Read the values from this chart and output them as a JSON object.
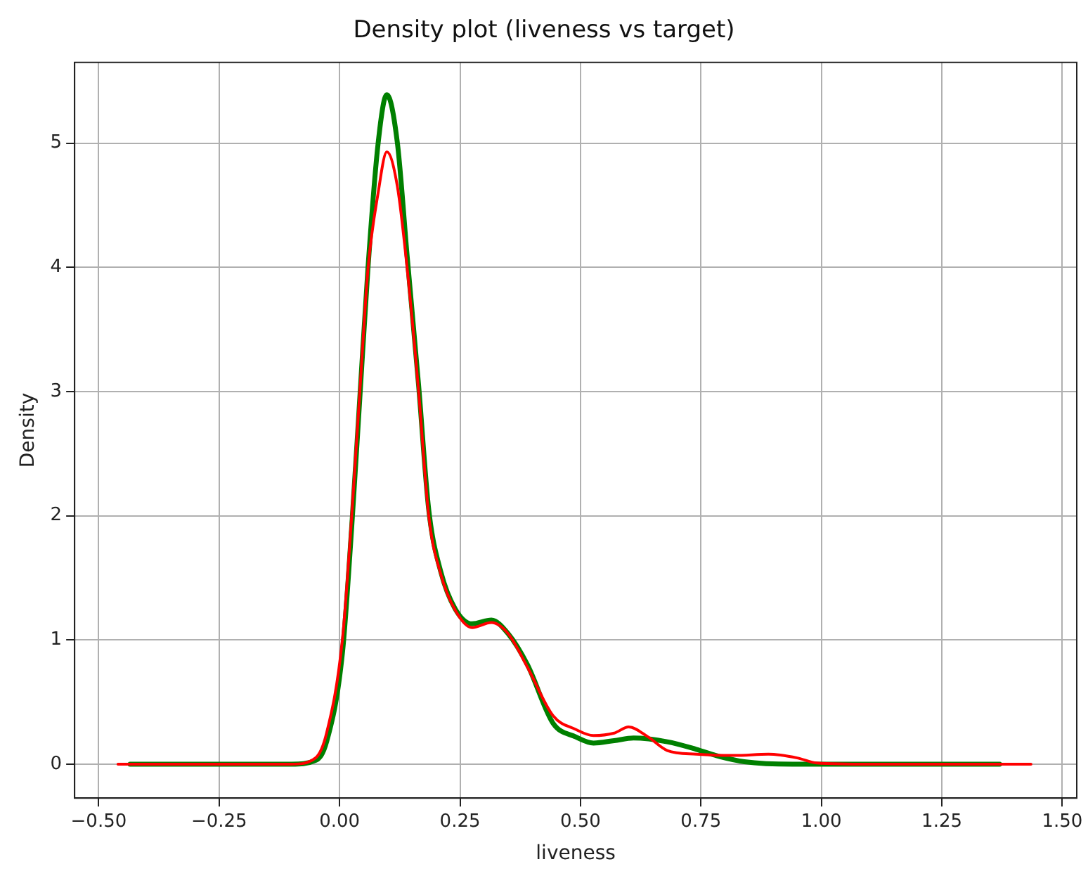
{
  "chart_data": {
    "type": "line",
    "title": "Density plot (liveness vs target)",
    "xlabel": "liveness",
    "ylabel": "Density",
    "xlim": [
      -0.55,
      1.53
    ],
    "ylim": [
      -0.273,
      5.65
    ],
    "xticks": [
      {
        "value": -0.5,
        "label": "−0.50"
      },
      {
        "value": -0.25,
        "label": "−0.25"
      },
      {
        "value": 0,
        "label": "0.00"
      },
      {
        "value": 0.25,
        "label": "0.25"
      },
      {
        "value": 0.5,
        "label": "0.50"
      },
      {
        "value": 0.75,
        "label": "0.75"
      },
      {
        "value": 1,
        "label": "1.00"
      },
      {
        "value": 1.25,
        "label": "1.25"
      },
      {
        "value": 1.5,
        "label": "1.50"
      }
    ],
    "yticks": [
      0,
      1,
      2,
      3,
      4,
      5
    ],
    "grid": true,
    "legend": false,
    "marker": "none",
    "line_style": "solid",
    "series": [
      {
        "color": "#008000",
        "x": [
          -0.435,
          -0.2,
          -0.1,
          -0.05,
          -0.027,
          0.006,
          0.025,
          0.042,
          0.059,
          0.08,
          0.098,
          0.12,
          0.14,
          0.164,
          0.185,
          0.21,
          0.24,
          0.275,
          0.315,
          0.35,
          0.39,
          0.443,
          0.49,
          0.527,
          0.57,
          0.61,
          0.68,
          0.74,
          0.79,
          0.84,
          0.94,
          1.1,
          1.37
        ],
        "values": [
          0,
          0,
          0,
          0.03,
          0.18,
          0.9,
          1.9,
          2.95,
          4.0,
          5.0,
          5.39,
          5.0,
          4.1,
          3.05,
          2.05,
          1.55,
          1.25,
          1.13,
          1.16,
          1.05,
          0.8,
          0.33,
          0.22,
          0.17,
          0.19,
          0.21,
          0.18,
          0.12,
          0.06,
          0.02,
          0,
          0,
          0
        ]
      },
      {
        "color": "#ff0000",
        "x": [
          -0.46,
          -0.2,
          -0.1,
          -0.05,
          -0.027,
          0.006,
          0.025,
          0.042,
          0.059,
          0.08,
          0.098,
          0.12,
          0.14,
          0.164,
          0.185,
          0.21,
          0.24,
          0.275,
          0.315,
          0.35,
          0.39,
          0.443,
          0.49,
          0.527,
          0.57,
          0.6,
          0.64,
          0.68,
          0.74,
          0.82,
          0.89,
          0.95,
          0.99,
          1.1,
          1.435
        ],
        "values": [
          0,
          0,
          0,
          0.05,
          0.25,
          1.01,
          1.99,
          3.0,
          3.99,
          4.6,
          4.93,
          4.65,
          4.0,
          3.0,
          2.0,
          1.53,
          1.24,
          1.1,
          1.14,
          1.05,
          0.78,
          0.39,
          0.28,
          0.23,
          0.25,
          0.3,
          0.22,
          0.11,
          0.08,
          0.07,
          0.08,
          0.05,
          0.01,
          0,
          0
        ]
      }
    ]
  }
}
